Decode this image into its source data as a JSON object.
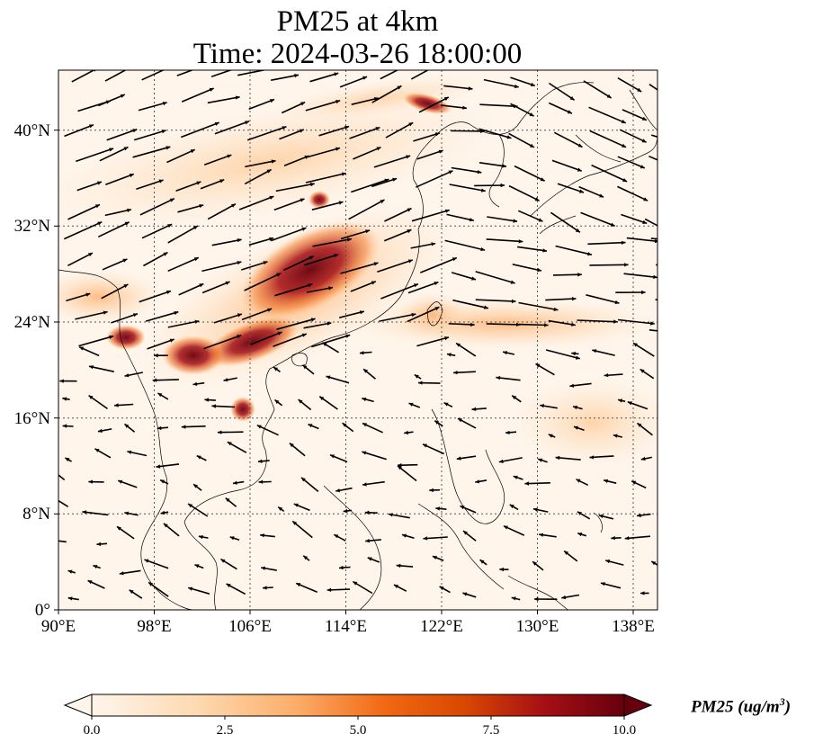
{
  "title": {
    "line1": "PM25 at 4km",
    "line2": "Time: 2024-03-26 18:00:00"
  },
  "map": {
    "projection": "PlateCarree",
    "lon_range": [
      90,
      140
    ],
    "lat_range": [
      0,
      45
    ],
    "lon_ticks": [
      "90°E",
      "98°E",
      "106°E",
      "114°E",
      "122°E",
      "130°E",
      "138°E"
    ],
    "lat_ticks": [
      "0°",
      "8°N",
      "16°N",
      "24°N",
      "32°N",
      "40°N"
    ],
    "gridlines": "dotted",
    "field": "PM25",
    "vectors": "wind arrows"
  },
  "colorbar": {
    "label": "PM25 (ug/m",
    "label_sup": "3",
    "label_close": ")",
    "ticks": [
      "0.0",
      "2.5",
      "5.0",
      "7.5",
      "10.0"
    ],
    "range": [
      0,
      10
    ],
    "extend": "both",
    "colormap": [
      "#fff5eb",
      "#fdd9b0",
      "#fdae6b",
      "#f16913",
      "#d94801",
      "#a50f15",
      "#67000d"
    ]
  }
}
